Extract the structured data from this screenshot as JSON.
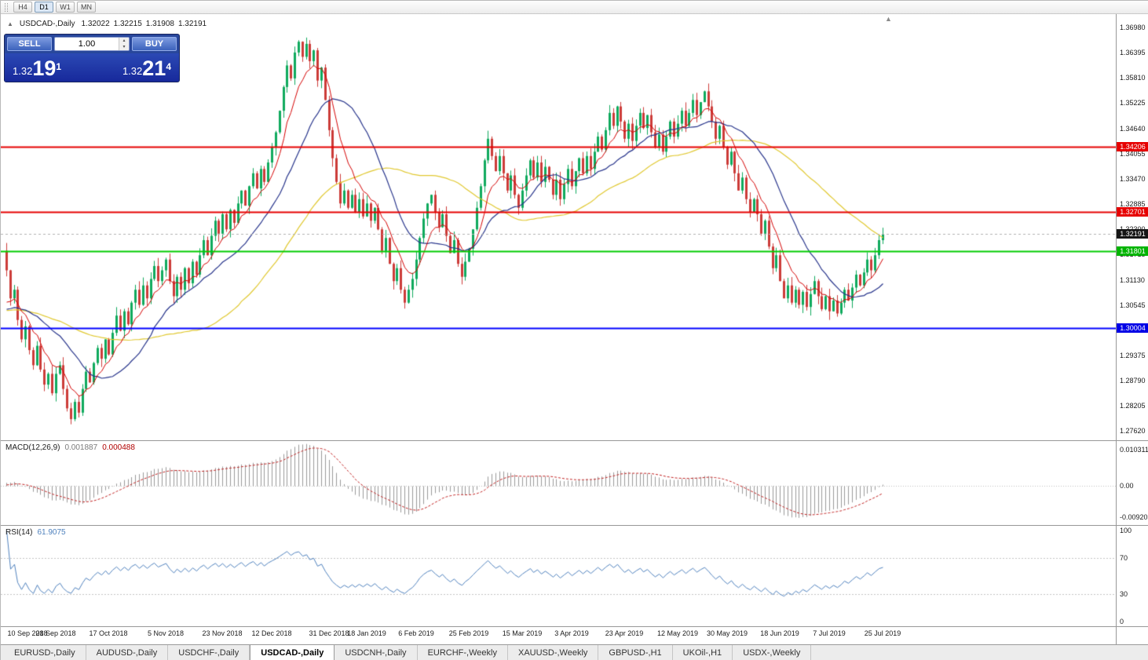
{
  "icons": {
    "toggle": "▲",
    "shift_marker": "▲",
    "spin_up": "▴",
    "spin_down": "▾"
  },
  "colors": {
    "up": "#0faa5d",
    "down": "#cc3b38",
    "ma_fast": "#d40000",
    "ma_med": "#27348b",
    "ma_slow": "#e0c830",
    "macd_hist": "#9a9a9a",
    "macd_signal": "#c02020",
    "rsi": "#4f81bd",
    "level_red": "#e60000",
    "level_green": "#00cc00",
    "level_blue": "#0000ff",
    "current_tag": "#151515"
  },
  "toolbar": {
    "periods": [
      {
        "label": "H4",
        "active": false
      },
      {
        "label": "D1",
        "active": true
      },
      {
        "label": "W1",
        "active": false
      },
      {
        "label": "MN",
        "active": false
      }
    ]
  },
  "chart_header": {
    "title": "USDCAD-,Daily",
    "open": "1.32022",
    "high": "1.32215",
    "low": "1.31908",
    "close": "1.32191"
  },
  "one_click": {
    "sell_label": "SELL",
    "buy_label": "BUY",
    "volume": "1.00",
    "sell": {
      "small": "1.32",
      "big": "19",
      "sup": "1"
    },
    "buy": {
      "small": "1.32",
      "big": "21",
      "sup": "4"
    }
  },
  "price_axis": {
    "ticks": [
      "1.36980",
      "1.36395",
      "1.35810",
      "1.35225",
      "1.34640",
      "1.34055",
      "1.33470",
      "1.32885",
      "1.32300",
      "1.31715",
      "1.31130",
      "1.30545",
      "1.29960",
      "1.29375",
      "1.28790",
      "1.28205",
      "1.27620"
    ]
  },
  "levels": [
    {
      "text": "1.34206",
      "price": 1.34206,
      "color": "#e60000",
      "line_color": "#e60000",
      "style": "solid"
    },
    {
      "text": "1.32701",
      "price": 1.32701,
      "color": "#e60000",
      "line_color": "#e60000",
      "style": "solid"
    },
    {
      "text": "1.32191",
      "price": 1.32191,
      "color": "#151515",
      "line_color": "#b0b0b0",
      "style": "current"
    },
    {
      "text": "1.31801",
      "price": 1.31801,
      "color": "#00b400",
      "line_color": "#00cc00",
      "style": "solid"
    },
    {
      "text": "1.30004",
      "price": 1.30004,
      "color": "#0000e6",
      "line_color": "#0000ff",
      "style": "solid"
    }
  ],
  "date_axis": {
    "labels": [
      "10 Sep 2018",
      "28 Sep 2018",
      "17 Oct 2018",
      "5 Nov 2018",
      "23 Nov 2018",
      "12 Dec 2018",
      "31 Dec 2018",
      "18 Jan 2019",
      "6 Feb 2019",
      "25 Feb 2019",
      "15 Mar 2019",
      "3 Apr 2019",
      "23 Apr 2019",
      "12 May 2019",
      "30 May 2019",
      "18 Jun 2019",
      "7 Jul 2019",
      "25 Jul 2019"
    ],
    "indices": [
      0,
      13,
      27,
      42,
      57,
      70,
      85,
      95,
      108,
      122,
      136,
      149,
      163,
      177,
      190,
      204,
      217,
      231
    ]
  },
  "macd_panel": {
    "label": "MACD(12,26,9)",
    "value1": "0.001887",
    "value2": "0.000488",
    "range": {
      "max": 0.0128,
      "min": -0.0114
    },
    "axis": [
      {
        "text": "0.010311",
        "v": 0.010311
      },
      {
        "text": "0.00",
        "v": 0
      },
      {
        "text": "-0.009203",
        "v": -0.009203
      }
    ]
  },
  "rsi_panel": {
    "label": "RSI(14)",
    "value": "61.9075",
    "axis": [
      {
        "text": "100",
        "v": 100
      },
      {
        "text": "70",
        "v": 70
      },
      {
        "text": "30",
        "v": 30
      },
      {
        "text": "0",
        "v": 0
      }
    ],
    "levels": [
      70,
      30
    ]
  },
  "tabs": [
    {
      "label": "EURUSD-,Daily",
      "active": false
    },
    {
      "label": "AUDUSD-,Daily",
      "active": false
    },
    {
      "label": "USDCHF-,Daily",
      "active": false
    },
    {
      "label": "USDCAD-,Daily",
      "active": true
    },
    {
      "label": "USDCNH-,Daily",
      "active": false
    },
    {
      "label": "EURCHF-,Weekly",
      "active": false
    },
    {
      "label": "XAUUSD-,Weekly",
      "active": false
    },
    {
      "label": "GBPUSD-,H1",
      "active": false
    },
    {
      "label": "UKOil-,H1",
      "active": false
    },
    {
      "label": "USDX-,Weekly",
      "active": false
    }
  ],
  "chart_data": {
    "type": "candlestick",
    "symbol": "USDCAD-",
    "timeframe": "Daily",
    "ohlc_current": {
      "open": 1.32022,
      "high": 1.32215,
      "low": 1.31908,
      "close": 1.32191
    },
    "current_price": 1.32191,
    "visible_range": {
      "price_min": 1.2741,
      "price_max": 1.3729
    },
    "first_open": 1.318,
    "prehistory_level": 1.304,
    "horizontal_levels": [
      1.34206,
      1.32701,
      1.31801,
      1.30004
    ],
    "y_axis_ticks": [
      1.3698,
      1.36395,
      1.3581,
      1.35225,
      1.3464,
      1.34055,
      1.3347,
      1.32885,
      1.323,
      1.31715,
      1.3113,
      1.30545,
      1.2996,
      1.29375,
      1.2879,
      1.28205,
      1.2762
    ],
    "indicators": {
      "moving_averages": [
        {
          "type": "EMA",
          "period": 8,
          "color": "#d40000"
        },
        {
          "type": "SMA",
          "period": 20,
          "color": "#27348b"
        },
        {
          "type": "SMA",
          "period": 50,
          "color": "#e0c830"
        }
      ],
      "macd": {
        "fast": 12,
        "slow": 26,
        "signal": 9,
        "value": 0.001887,
        "signal_value": 0.000488
      },
      "rsi": {
        "period": 14,
        "value": 61.9075
      }
    },
    "closes": [
      1.3135,
      1.307,
      1.309,
      1.302,
      1.2975,
      1.3005,
      1.295,
      1.2915,
      1.296,
      1.2905,
      1.287,
      1.2895,
      1.285,
      1.2895,
      1.2915,
      1.286,
      1.2815,
      1.279,
      1.283,
      1.2805,
      1.286,
      1.29,
      1.2875,
      1.292,
      1.2955,
      1.293,
      1.2975,
      1.294,
      1.299,
      1.303,
      1.2995,
      1.304,
      1.301,
      1.306,
      1.309,
      1.3055,
      1.31,
      1.307,
      1.3115,
      1.3145,
      1.311,
      1.3135,
      1.316,
      1.311,
      1.3075,
      1.312,
      1.309,
      1.314,
      1.3105,
      1.3155,
      1.3125,
      1.317,
      1.3205,
      1.317,
      1.3215,
      1.325,
      1.322,
      1.3265,
      1.323,
      1.3275,
      1.3245,
      1.329,
      1.332,
      1.3285,
      1.333,
      1.336,
      1.3325,
      1.337,
      1.334,
      1.3385,
      1.342,
      1.3455,
      1.3505,
      1.356,
      1.361,
      1.358,
      1.364,
      1.3665,
      1.363,
      1.366,
      1.362,
      1.3645,
      1.3575,
      1.3605,
      1.353,
      1.346,
      1.3395,
      1.334,
      1.329,
      1.332,
      1.328,
      1.331,
      1.327,
      1.33,
      1.326,
      1.329,
      1.325,
      1.328,
      1.323,
      1.318,
      1.321,
      1.315,
      1.311,
      1.314,
      1.309,
      1.306,
      1.309,
      1.3115,
      1.316,
      1.321,
      1.3255,
      1.329,
      1.331,
      1.327,
      1.3235,
      1.3265,
      1.3215,
      1.3175,
      1.3205,
      1.315,
      1.312,
      1.3155,
      1.3185,
      1.323,
      1.328,
      1.333,
      1.339,
      1.344,
      1.34,
      1.3365,
      1.34,
      1.336,
      1.332,
      1.3355,
      1.331,
      1.328,
      1.332,
      1.3355,
      1.339,
      1.335,
      1.3385,
      1.334,
      1.3375,
      1.3345,
      1.331,
      1.3345,
      1.33,
      1.3335,
      1.337,
      1.333,
      1.3365,
      1.3395,
      1.336,
      1.34,
      1.337,
      1.341,
      1.3445,
      1.3415,
      1.346,
      1.35,
      1.347,
      1.3515,
      1.348,
      1.344,
      1.3475,
      1.3435,
      1.347,
      1.35,
      1.3465,
      1.3495,
      1.3455,
      1.342,
      1.345,
      1.341,
      1.3445,
      1.348,
      1.3445,
      1.3475,
      1.3505,
      1.347,
      1.35,
      1.353,
      1.3495,
      1.3525,
      1.355,
      1.3515,
      1.348,
      1.344,
      1.347,
      1.342,
      1.338,
      1.341,
      1.336,
      1.332,
      1.335,
      1.33,
      1.327,
      1.33,
      1.3265,
      1.322,
      1.325,
      1.319,
      1.314,
      1.317,
      1.311,
      1.307,
      1.31,
      1.306,
      1.309,
      1.3055,
      1.3085,
      1.305,
      1.308,
      1.311,
      1.3075,
      1.3045,
      1.3075,
      1.304,
      1.3065,
      1.3035,
      1.306,
      1.309,
      1.3065,
      1.3095,
      1.3125,
      1.31,
      1.313,
      1.316,
      1.3135,
      1.317,
      1.3205,
      1.32191
    ]
  }
}
